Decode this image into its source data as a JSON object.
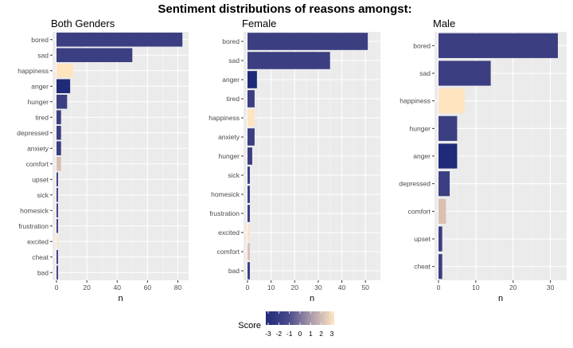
{
  "figure_title": "Sentiment distributions of reasons amongst:",
  "legend": {
    "title": "Score",
    "ticks": [
      "-3",
      "-2",
      "-1",
      "0",
      "1",
      "2",
      "3"
    ],
    "color_low": "#1f2a78",
    "color_high": "#ffe4c0"
  },
  "chart_data": [
    {
      "type": "bar",
      "orientation": "horizontal",
      "title": "Both Genders",
      "xlabel": "n",
      "xlim": [
        0,
        85
      ],
      "xticks": [
        0,
        20,
        40,
        60,
        80
      ],
      "categories": [
        "bored",
        "sad",
        "happiness",
        "anger",
        "hunger",
        "tired",
        "depressed",
        "anxiety",
        "comfort",
        "upset",
        "sick",
        "homesick",
        "frustration",
        "excited",
        "cheat",
        "bad"
      ],
      "values": [
        83,
        50,
        11,
        9,
        7,
        3,
        3,
        3,
        3,
        1,
        1,
        1,
        1,
        1,
        1,
        1
      ],
      "scores": [
        -2,
        -2,
        3,
        -3,
        -2,
        -2,
        -2,
        -2,
        2,
        -2,
        -2,
        -2,
        -2,
        3,
        -2,
        -2
      ],
      "grid": true
    },
    {
      "type": "bar",
      "orientation": "horizontal",
      "title": "Female",
      "xlabel": "n",
      "xlim": [
        0,
        55
      ],
      "xticks": [
        0,
        10,
        20,
        30,
        40,
        50
      ],
      "categories": [
        "bored",
        "sad",
        "anger",
        "tired",
        "happiness",
        "anxiety",
        "hunger",
        "sick",
        "homesick",
        "frustration",
        "excited",
        "comfort",
        "bad"
      ],
      "values": [
        51,
        35,
        4,
        3,
        3,
        3,
        2,
        1,
        1,
        1,
        1,
        1,
        1
      ],
      "scores": [
        -2,
        -2,
        -3,
        -2,
        3,
        -2,
        -2,
        -2,
        -2,
        -2,
        3,
        2,
        -2
      ],
      "grid": true
    },
    {
      "type": "bar",
      "orientation": "horizontal",
      "title": "Male",
      "xlabel": "n",
      "xlim": [
        0,
        33.5
      ],
      "xticks": [
        0,
        10,
        20,
        30
      ],
      "categories": [
        "bored",
        "sad",
        "happiness",
        "hunger",
        "anger",
        "depressed",
        "comfort",
        "upset",
        "cheat"
      ],
      "values": [
        32,
        14,
        7,
        5,
        5,
        3,
        2,
        1,
        1
      ],
      "scores": [
        -2,
        -2,
        3,
        -2,
        -3,
        -2,
        2,
        -2,
        -2
      ],
      "grid": true
    }
  ]
}
